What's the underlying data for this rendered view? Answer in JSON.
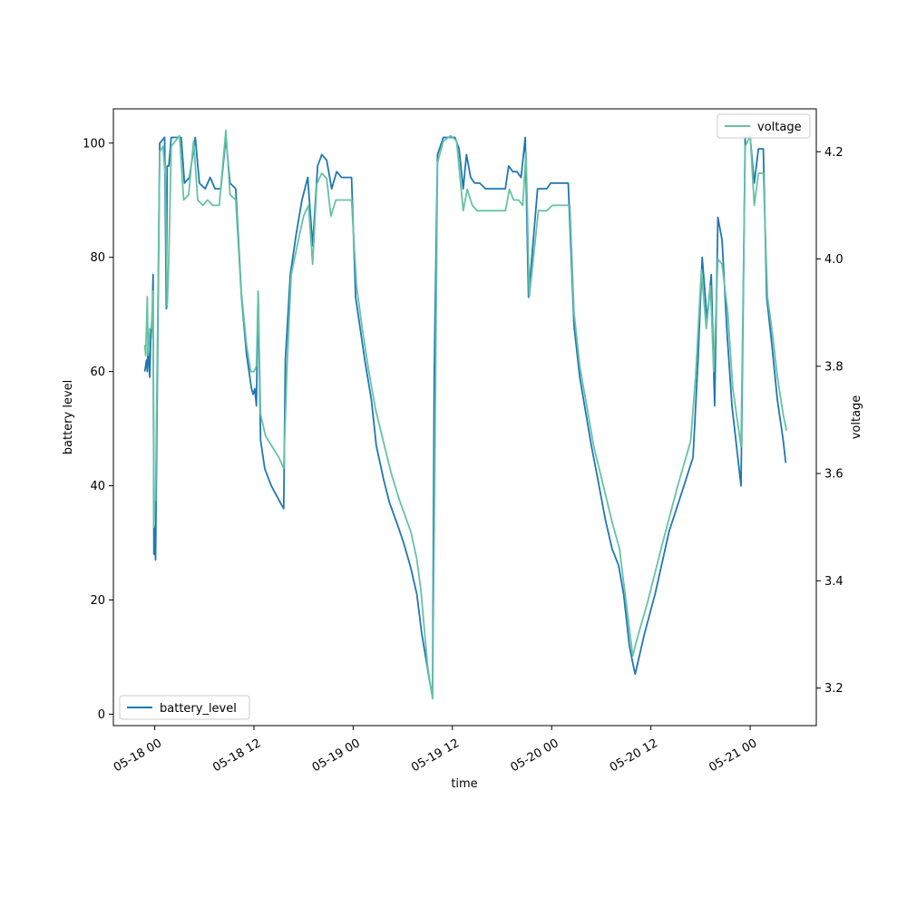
{
  "colors": {
    "battery": "#1f77b4",
    "voltage": "#66c2a5"
  },
  "chart_data": {
    "type": "line",
    "xlabel": "time",
    "ylabel_left": "battery level",
    "ylabel_right": "voltage",
    "x_ticks": [
      {
        "t": 0,
        "label": "05-18 00"
      },
      {
        "t": 12,
        "label": "05-18 12"
      },
      {
        "t": 24,
        "label": "05-19 00"
      },
      {
        "t": 36,
        "label": "05-19 12"
      },
      {
        "t": 48,
        "label": "05-20 00"
      },
      {
        "t": 60,
        "label": "05-20 12"
      },
      {
        "t": 72,
        "label": "05-21 00"
      }
    ],
    "xlim": [
      -5,
      80
    ],
    "ylim_left": [
      -2,
      106
    ],
    "ylim_right": [
      3.13,
      4.28
    ],
    "y_ticks_left": [
      0,
      20,
      40,
      60,
      80,
      100
    ],
    "y_ticks_right": [
      3.2,
      3.4,
      3.6,
      3.8,
      4.0,
      4.2
    ],
    "legend": {
      "left_axis": "lower-left",
      "right_axis": "upper-right"
    },
    "series": [
      {
        "name": "battery_level",
        "axis": "left",
        "points": [
          [
            -1.2,
            60
          ],
          [
            -1.1,
            61
          ],
          [
            -1.0,
            62
          ],
          [
            -0.9,
            60
          ],
          [
            -0.8,
            65
          ],
          [
            -0.7,
            62
          ],
          [
            -0.6,
            59
          ],
          [
            -0.5,
            65
          ],
          [
            -0.3,
            70
          ],
          [
            -0.2,
            77
          ],
          [
            -0.1,
            28
          ],
          [
            0.0,
            33
          ],
          [
            0.1,
            27
          ],
          [
            0.6,
            100
          ],
          [
            1.2,
            101
          ],
          [
            1.4,
            71
          ],
          [
            1.5,
            96
          ],
          [
            1.7,
            96
          ],
          [
            2.0,
            101
          ],
          [
            3.2,
            101
          ],
          [
            3.6,
            93
          ],
          [
            4.2,
            94
          ],
          [
            4.9,
            101
          ],
          [
            5.4,
            93
          ],
          [
            6.1,
            92
          ],
          [
            6.7,
            94
          ],
          [
            7.3,
            92
          ],
          [
            8.0,
            92
          ],
          [
            8.6,
            101
          ],
          [
            9.1,
            93
          ],
          [
            9.8,
            92
          ],
          [
            10.5,
            73
          ],
          [
            11.1,
            63
          ],
          [
            11.7,
            57
          ],
          [
            11.9,
            56
          ],
          [
            12.1,
            57
          ],
          [
            12.3,
            54
          ],
          [
            12.5,
            74
          ],
          [
            12.8,
            48
          ],
          [
            13.3,
            43
          ],
          [
            14.1,
            40
          ],
          [
            15.2,
            37
          ],
          [
            15.6,
            36
          ],
          [
            15.8,
            62
          ],
          [
            16.4,
            77
          ],
          [
            17.1,
            84
          ],
          [
            17.8,
            90
          ],
          [
            18.5,
            94
          ],
          [
            19.1,
            82
          ],
          [
            19.7,
            96
          ],
          [
            20.2,
            98
          ],
          [
            20.8,
            97
          ],
          [
            21.4,
            92
          ],
          [
            22.0,
            95
          ],
          [
            22.6,
            94
          ],
          [
            23.3,
            94
          ],
          [
            23.8,
            94
          ],
          [
            24.3,
            73
          ],
          [
            25.4,
            62
          ],
          [
            26.2,
            55
          ],
          [
            26.8,
            47
          ],
          [
            27.7,
            41
          ],
          [
            28.4,
            37
          ],
          [
            29.4,
            33
          ],
          [
            30.1,
            30
          ],
          [
            30.9,
            26
          ],
          [
            31.7,
            21
          ],
          [
            32.3,
            14
          ],
          [
            33.1,
            7
          ],
          [
            33.6,
            3
          ],
          [
            33.8,
            60
          ],
          [
            34.2,
            98
          ],
          [
            34.9,
            101
          ],
          [
            36.3,
            101
          ],
          [
            36.8,
            99
          ],
          [
            37.3,
            92
          ],
          [
            37.7,
            98
          ],
          [
            38.2,
            94
          ],
          [
            38.7,
            93
          ],
          [
            39.3,
            93
          ],
          [
            40.0,
            92
          ],
          [
            41.2,
            92
          ],
          [
            42.4,
            92
          ],
          [
            42.8,
            96
          ],
          [
            43.3,
            95
          ],
          [
            43.8,
            95
          ],
          [
            44.3,
            94
          ],
          [
            44.8,
            101
          ],
          [
            45.2,
            73
          ],
          [
            46.3,
            92
          ],
          [
            47.4,
            92
          ],
          [
            47.9,
            93
          ],
          [
            48.9,
            93
          ],
          [
            50.0,
            93
          ],
          [
            50.7,
            68
          ],
          [
            51.4,
            59
          ],
          [
            52.1,
            53
          ],
          [
            52.8,
            47
          ],
          [
            53.6,
            41
          ],
          [
            54.5,
            34
          ],
          [
            55.3,
            29
          ],
          [
            56.1,
            26
          ],
          [
            56.7,
            21
          ],
          [
            57.4,
            12
          ],
          [
            57.8,
            9
          ],
          [
            58.1,
            7
          ],
          [
            59.2,
            14
          ],
          [
            60.5,
            21
          ],
          [
            62.2,
            32
          ],
          [
            64.0,
            40
          ],
          [
            65.1,
            45
          ],
          [
            65.7,
            62
          ],
          [
            66.2,
            80
          ],
          [
            66.8,
            69
          ],
          [
            67.3,
            77
          ],
          [
            67.7,
            54
          ],
          [
            68.1,
            87
          ],
          [
            68.6,
            83
          ],
          [
            69.2,
            67
          ],
          [
            69.8,
            54
          ],
          [
            70.9,
            40
          ],
          [
            71.4,
            101
          ],
          [
            72.0,
            101
          ],
          [
            72.5,
            93
          ],
          [
            73.0,
            99
          ],
          [
            73.6,
            99
          ],
          [
            74.0,
            73
          ],
          [
            74.6,
            65
          ],
          [
            75.3,
            55
          ],
          [
            76.0,
            48
          ],
          [
            76.3,
            44
          ]
        ]
      },
      {
        "name": "voltage",
        "axis": "right",
        "points": [
          [
            -1.2,
            3.84
          ],
          [
            -1.1,
            3.82
          ],
          [
            -0.9,
            3.93
          ],
          [
            -0.8,
            3.82
          ],
          [
            -0.6,
            3.87
          ],
          [
            -0.4,
            3.87
          ],
          [
            -0.2,
            3.94
          ],
          [
            -0.1,
            3.5
          ],
          [
            0.0,
            3.55
          ],
          [
            0.1,
            3.55
          ],
          [
            0.6,
            4.2
          ],
          [
            1.0,
            4.21
          ],
          [
            1.3,
            4.15
          ],
          [
            1.5,
            3.91
          ],
          [
            1.7,
            4.0
          ],
          [
            2.0,
            4.21
          ],
          [
            3.0,
            4.23
          ],
          [
            3.5,
            4.11
          ],
          [
            4.1,
            4.12
          ],
          [
            4.7,
            4.22
          ],
          [
            5.2,
            4.11
          ],
          [
            5.8,
            4.1
          ],
          [
            6.4,
            4.11
          ],
          [
            7.0,
            4.1
          ],
          [
            7.8,
            4.1
          ],
          [
            8.6,
            4.24
          ],
          [
            9.1,
            4.12
          ],
          [
            9.8,
            4.11
          ],
          [
            10.4,
            3.95
          ],
          [
            11.1,
            3.84
          ],
          [
            11.6,
            3.79
          ],
          [
            12.0,
            3.79
          ],
          [
            12.3,
            3.8
          ],
          [
            12.5,
            3.94
          ],
          [
            12.8,
            3.71
          ],
          [
            13.4,
            3.67
          ],
          [
            14.2,
            3.65
          ],
          [
            15.0,
            3.63
          ],
          [
            15.6,
            3.61
          ],
          [
            16.0,
            3.8
          ],
          [
            16.5,
            3.97
          ],
          [
            17.3,
            4.03
          ],
          [
            18.0,
            4.08
          ],
          [
            18.6,
            4.1
          ],
          [
            19.1,
            3.99
          ],
          [
            19.6,
            4.14
          ],
          [
            20.2,
            4.16
          ],
          [
            20.8,
            4.15
          ],
          [
            21.3,
            4.08
          ],
          [
            21.9,
            4.11
          ],
          [
            22.6,
            4.11
          ],
          [
            23.3,
            4.11
          ],
          [
            23.8,
            4.11
          ],
          [
            24.4,
            3.95
          ],
          [
            25.1,
            3.87
          ],
          [
            25.9,
            3.79
          ],
          [
            26.7,
            3.72
          ],
          [
            27.8,
            3.65
          ],
          [
            28.6,
            3.6
          ],
          [
            29.6,
            3.55
          ],
          [
            30.3,
            3.52
          ],
          [
            31.0,
            3.49
          ],
          [
            31.7,
            3.44
          ],
          [
            32.2,
            3.38
          ],
          [
            33.0,
            3.24
          ],
          [
            33.6,
            3.18
          ],
          [
            33.8,
            3.5
          ],
          [
            34.2,
            4.18
          ],
          [
            34.9,
            4.22
          ],
          [
            35.8,
            4.23
          ],
          [
            36.5,
            4.22
          ],
          [
            37.3,
            4.09
          ],
          [
            37.8,
            4.13
          ],
          [
            38.4,
            4.1
          ],
          [
            39.0,
            4.09
          ],
          [
            39.8,
            4.09
          ],
          [
            40.6,
            4.09
          ],
          [
            41.3,
            4.09
          ],
          [
            42.0,
            4.09
          ],
          [
            42.4,
            4.09
          ],
          [
            42.9,
            4.13
          ],
          [
            43.4,
            4.11
          ],
          [
            44.0,
            4.11
          ],
          [
            44.5,
            4.1
          ],
          [
            44.9,
            4.2
          ],
          [
            45.3,
            3.93
          ],
          [
            46.4,
            4.09
          ],
          [
            47.4,
            4.09
          ],
          [
            48.1,
            4.1
          ],
          [
            48.8,
            4.1
          ],
          [
            49.5,
            4.1
          ],
          [
            50.2,
            4.1
          ],
          [
            50.7,
            3.9
          ],
          [
            51.4,
            3.8
          ],
          [
            52.2,
            3.73
          ],
          [
            53.1,
            3.65
          ],
          [
            54.2,
            3.58
          ],
          [
            55.3,
            3.51
          ],
          [
            56.2,
            3.46
          ],
          [
            57.0,
            3.36
          ],
          [
            57.8,
            3.26
          ],
          [
            58.3,
            3.29
          ],
          [
            59.6,
            3.36
          ],
          [
            61.4,
            3.47
          ],
          [
            63.3,
            3.58
          ],
          [
            64.8,
            3.66
          ],
          [
            65.4,
            3.78
          ],
          [
            66.1,
            3.98
          ],
          [
            66.7,
            3.87
          ],
          [
            67.2,
            3.95
          ],
          [
            67.6,
            3.79
          ],
          [
            68.1,
            4.0
          ],
          [
            68.6,
            3.99
          ],
          [
            69.3,
            3.9
          ],
          [
            69.9,
            3.76
          ],
          [
            70.9,
            3.65
          ],
          [
            71.4,
            4.21
          ],
          [
            72.0,
            4.23
          ],
          [
            72.5,
            4.1
          ],
          [
            73.0,
            4.16
          ],
          [
            73.6,
            4.16
          ],
          [
            74.1,
            3.93
          ],
          [
            74.7,
            3.86
          ],
          [
            75.3,
            3.78
          ],
          [
            76.0,
            3.71
          ],
          [
            76.4,
            3.68
          ]
        ]
      }
    ]
  }
}
